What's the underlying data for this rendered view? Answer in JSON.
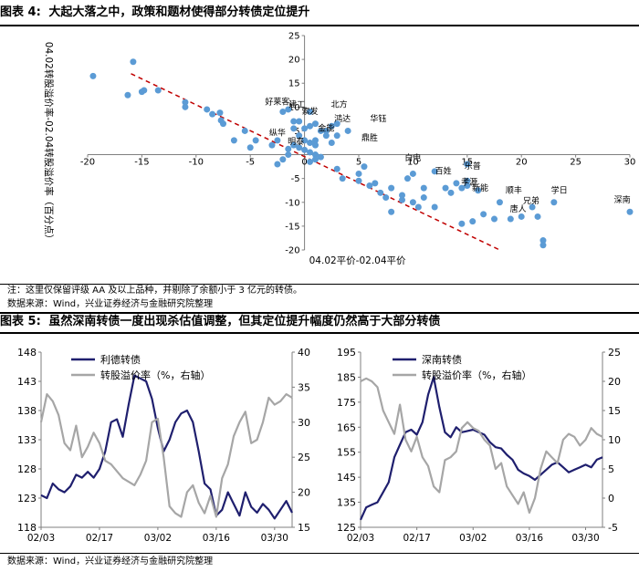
{
  "figure4": {
    "label": "图表 4:",
    "title": "大起大落之中，政策和题材使得部分转债定位提升",
    "note": "注：这里仅保留评级 AA 及以上品种，并剔除了余额小于 3 亿元的转债。",
    "source": "数据来源：Wind，兴业证券经济与金融研究院整理"
  },
  "figure5": {
    "label": "图表 5:",
    "title": "虽然深南转债一度出现杀估值调整，但其定位提升幅度仍然高于大部分转债",
    "source": "数据来源：Wind，兴业证券经济与金融研究院整理"
  },
  "colors": {
    "scatter": "#5b9bd5",
    "trend": "#c00000",
    "price": "#1f1f6e",
    "premium": "#a6a6a6",
    "text": "#000000",
    "axis": "#7f7f7f"
  },
  "chart_data": [
    {
      "type": "scatter",
      "title": "",
      "xlabel": "04.02平价-02.04平价",
      "ylabel": "04.02转股溢价率-02.04转股溢价率（百分点）",
      "xlim": [
        -20,
        30
      ],
      "ylim": [
        -20,
        25
      ],
      "xticks": [
        -20,
        -15,
        -10,
        -5,
        0,
        5,
        10,
        15,
        20,
        25,
        30
      ],
      "yticks": [
        -20,
        -15,
        -10,
        -5,
        0,
        5,
        10,
        15,
        20,
        25
      ],
      "trend": {
        "style": "dashed",
        "from": [
          -16,
          17
        ],
        "to": [
          18,
          -20
        ]
      },
      "points": [
        [
          -19.5,
          16.5
        ],
        [
          -15.8,
          19.5
        ],
        [
          -16.3,
          12.5
        ],
        [
          -15,
          13.2
        ],
        [
          -14.8,
          13.5
        ],
        [
          -13.5,
          13.5
        ],
        [
          -11,
          11
        ],
        [
          -11,
          10
        ],
        [
          -9,
          9.5
        ],
        [
          -8.5,
          8.5
        ],
        [
          -7.8,
          8.8
        ],
        [
          -7.7,
          7.2
        ],
        [
          -7.5,
          6.5
        ],
        [
          -5.5,
          5
        ],
        [
          -6.5,
          3
        ],
        [
          -4.5,
          3
        ],
        [
          -5,
          1.5
        ],
        [
          -3,
          2
        ],
        [
          -2.5,
          3
        ],
        [
          -2,
          9
        ],
        [
          -1.5,
          9.5
        ],
        [
          -1,
          7
        ],
        [
          -1,
          5.5
        ],
        [
          -0.5,
          7
        ],
        [
          0.5,
          9
        ],
        [
          0.5,
          6
        ],
        [
          0,
          5.5
        ],
        [
          -0.5,
          4
        ],
        [
          1,
          6.5
        ],
        [
          1.5,
          5
        ],
        [
          2,
          5
        ],
        [
          2.5,
          2.5
        ],
        [
          2,
          4
        ],
        [
          2.5,
          6
        ],
        [
          3,
          4
        ],
        [
          4,
          5
        ],
        [
          3,
          6.5
        ],
        [
          0,
          3
        ],
        [
          0.5,
          2.5
        ],
        [
          1,
          2
        ],
        [
          1,
          3
        ],
        [
          -1,
          2
        ],
        [
          -1.5,
          1.2
        ],
        [
          -0.5,
          1.5
        ],
        [
          0,
          1
        ],
        [
          -1.5,
          0
        ],
        [
          -2,
          -1
        ],
        [
          -2.5,
          -2
        ],
        [
          0.5,
          0.5
        ],
        [
          1,
          0
        ],
        [
          1,
          -1
        ],
        [
          1.5,
          -0.5
        ],
        [
          0.5,
          -1.5
        ],
        [
          3,
          -3
        ],
        [
          3.5,
          -5
        ],
        [
          5,
          -4
        ],
        [
          5.5,
          -2.5
        ],
        [
          5,
          -5.5
        ],
        [
          6,
          -6.5
        ],
        [
          6.5,
          -6
        ],
        [
          7,
          -8
        ],
        [
          7.5,
          -9
        ],
        [
          8,
          -12
        ],
        [
          8,
          -7
        ],
        [
          9,
          -8.5
        ],
        [
          9,
          -9.5
        ],
        [
          9.5,
          -5
        ],
        [
          10,
          -4
        ],
        [
          10,
          -10
        ],
        [
          10.5,
          -11
        ],
        [
          11,
          -7
        ],
        [
          11,
          -9
        ],
        [
          12,
          -3.5
        ],
        [
          12,
          -11
        ],
        [
          13,
          -7
        ],
        [
          13.5,
          -8
        ],
        [
          14,
          -6
        ],
        [
          14.5,
          -7
        ],
        [
          15,
          -2
        ],
        [
          15,
          -5.5
        ],
        [
          15,
          -6.5
        ],
        [
          16,
          -7.5
        ],
        [
          14.5,
          -14.5
        ],
        [
          15.5,
          -14
        ],
        [
          16.5,
          -12.5
        ],
        [
          17.5,
          -13.5
        ],
        [
          18,
          -10
        ],
        [
          19,
          -13.5
        ],
        [
          20,
          -13
        ],
        [
          21.5,
          -13
        ],
        [
          21,
          -11
        ],
        [
          22,
          -18
        ],
        [
          22,
          -19
        ],
        [
          23,
          -10
        ],
        [
          30,
          -12
        ]
      ],
      "labels": [
        {
          "text": "好莱客",
          "x": -2.5,
          "y": 10.5
        },
        {
          "text": "建工",
          "x": -0.7,
          "y": 10
        },
        {
          "text": "北方",
          "x": 3.2,
          "y": 10
        },
        {
          "text": "索发",
          "x": 0.5,
          "y": 8.5
        },
        {
          "text": "鸿达",
          "x": 3.5,
          "y": 7
        },
        {
          "text": "华钰",
          "x": 6.8,
          "y": 7
        },
        {
          "text": "金能",
          "x": 2,
          "y": 5
        },
        {
          "text": "纵华",
          "x": -2.5,
          "y": 4
        },
        {
          "text": "鼎胜",
          "x": 6,
          "y": 3
        },
        {
          "text": "明泰",
          "x": -0.8,
          "y": 2.2
        },
        {
          "text": "白电",
          "x": 10,
          "y": -1.2
        },
        {
          "text": "乐普",
          "x": 15.5,
          "y": -3
        },
        {
          "text": "百姓",
          "x": 12.8,
          "y": -4
        },
        {
          "text": "孝源",
          "x": 15.2,
          "y": -6.3
        },
        {
          "text": "新能",
          "x": 16.2,
          "y": -7.6
        },
        {
          "text": "顺丰",
          "x": 19.3,
          "y": -8
        },
        {
          "text": "学日",
          "x": 23.5,
          "y": -8
        },
        {
          "text": "兄弟",
          "x": 20.9,
          "y": -10.2
        },
        {
          "text": "唐人",
          "x": 19.7,
          "y": -12
        },
        {
          "text": "深南",
          "x": 29.3,
          "y": -10
        }
      ]
    },
    {
      "type": "line",
      "title": "",
      "xlabel": "",
      "x_ticks": [
        "02/03",
        "02/17",
        "03/02",
        "03/16",
        "03/30"
      ],
      "n_points": 44,
      "y_left": {
        "lim": [
          118,
          148
        ],
        "ticks": [
          118,
          123,
          128,
          133,
          138,
          143,
          148
        ]
      },
      "y_right": {
        "lim": [
          15,
          40
        ],
        "ticks": [
          15,
          20,
          25,
          30,
          35,
          40
        ],
        "label": "转股溢价率（%，右轴）"
      },
      "series": [
        {
          "name": "利德转债",
          "axis": "left",
          "values": [
            123.5,
            123,
            125.5,
            124.5,
            124,
            125,
            127,
            126.5,
            127.5,
            126.5,
            128,
            131,
            136,
            136.5,
            133.5,
            139,
            144,
            143.5,
            143,
            140,
            135,
            131,
            133,
            136,
            137.5,
            138,
            136,
            131,
            125.5,
            124.5,
            120,
            121,
            124,
            122,
            120,
            124,
            121.5,
            120.5,
            122,
            121,
            119.5,
            121,
            122.5,
            120.5
          ]
        },
        {
          "name": "转股溢价率（%，右轴）",
          "axis": "right",
          "values": [
            30,
            34,
            33,
            31,
            27,
            26,
            29.5,
            25,
            26.5,
            28.5,
            27,
            24.5,
            24,
            23,
            22,
            21.5,
            21,
            22.5,
            24.5,
            30,
            30.5,
            25,
            18,
            17,
            16.5,
            20,
            21,
            18.5,
            17,
            19.5,
            16.5,
            22,
            24,
            28,
            30,
            31.5,
            27,
            27.5,
            30,
            33.5,
            32.5,
            33,
            34,
            33.5
          ]
        }
      ]
    },
    {
      "type": "line",
      "title": "",
      "xlabel": "",
      "x_ticks": [
        "02/03",
        "02/17",
        "03/02",
        "03/16",
        "03/30"
      ],
      "n_points": 44,
      "y_left": {
        "lim": [
          125,
          195
        ],
        "ticks": [
          125,
          135,
          145,
          155,
          165,
          175,
          185,
          195
        ]
      },
      "y_right": {
        "lim": [
          -5,
          25
        ],
        "ticks": [
          -5,
          0,
          5,
          10,
          15,
          20,
          25
        ],
        "label": "转股溢价率（%，右轴）"
      },
      "series": [
        {
          "name": "深南转债",
          "axis": "left",
          "values": [
            128,
            133,
            134,
            135,
            139,
            143,
            153,
            158,
            163,
            164,
            162,
            167,
            178,
            185,
            173,
            163,
            161,
            165,
            163,
            163.5,
            164,
            163,
            162,
            159,
            157,
            156.5,
            154,
            152,
            148,
            146.5,
            145.5,
            144,
            146,
            148,
            150,
            151,
            149,
            147,
            148,
            149,
            150,
            149,
            152,
            153
          ]
        },
        {
          "name": "转股溢价率（%，右轴）",
          "axis": "right",
          "values": [
            20,
            20.5,
            20,
            19,
            15,
            13,
            11,
            16,
            10,
            8,
            10.5,
            7,
            5.5,
            2,
            1,
            6.5,
            7,
            8,
            12,
            13,
            12,
            11.5,
            10,
            9,
            5,
            6,
            2,
            0.5,
            -1,
            1,
            -2.5,
            0,
            5,
            8,
            7,
            6,
            10,
            11,
            10.5,
            9,
            10,
            12,
            11,
            10.5
          ]
        }
      ]
    }
  ]
}
